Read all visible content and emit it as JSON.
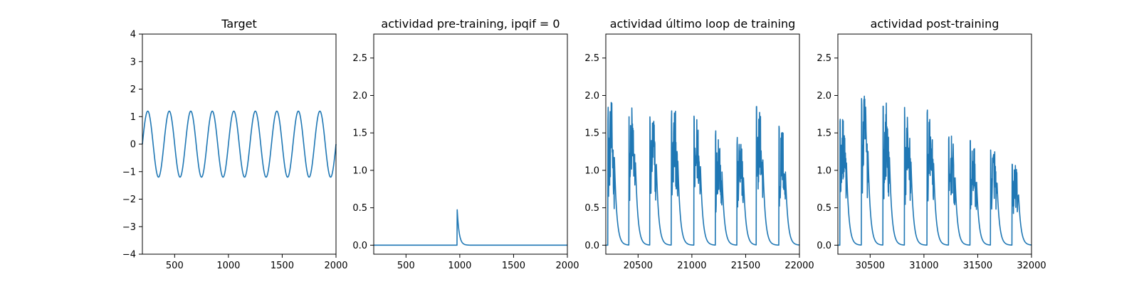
{
  "accent_color": "#1f77b4",
  "chart_data": [
    {
      "type": "line",
      "title": "Target",
      "xlabel": "",
      "ylabel": "",
      "xlim": [
        200,
        2000
      ],
      "ylim": [
        -4,
        4
      ],
      "xticks": [
        500,
        1000,
        1500,
        2000
      ],
      "yticks": [
        -4,
        -3,
        -2,
        -1,
        0,
        1,
        2,
        3,
        4
      ],
      "grid": false,
      "series": [
        {
          "shape": "sinusoid",
          "amplitude": 1.2,
          "period": 200,
          "peaks_at_x": [
            250,
            450,
            650,
            850,
            1050,
            1250,
            1450,
            1650,
            1850
          ],
          "troughs_at_x": [
            350,
            550,
            750,
            950,
            1150,
            1350,
            1550,
            1750,
            1950
          ],
          "value_at_x_2000": 0.4
        }
      ]
    },
    {
      "type": "line",
      "title": "actividad pre-training, ipqif = 0",
      "xlabel": "",
      "ylabel": "",
      "xlim": [
        200,
        2000
      ],
      "ylim": [
        -0.12,
        2.82
      ],
      "xticks": [
        500,
        1000,
        1500,
        2000
      ],
      "yticks": [
        0.0,
        0.5,
        1.0,
        1.5,
        2.0,
        2.5
      ],
      "grid": false,
      "series": [
        {
          "shape": "single_spike_with_decay",
          "baseline": 0.0,
          "spike_x": 975,
          "spike_value": 0.5,
          "decay_time": 18
        }
      ]
    },
    {
      "type": "line",
      "title": "actividad último loop de training",
      "xlabel": "",
      "ylabel": "",
      "xlim": [
        20200,
        22000
      ],
      "ylim": [
        -0.12,
        2.82
      ],
      "xticks": [
        20500,
        21000,
        21500,
        22000
      ],
      "yticks": [
        0.0,
        0.5,
        1.0,
        1.5,
        2.0,
        2.5
      ],
      "grid": false,
      "series": [
        {
          "shape": "noisy_bursts_with_decay",
          "baseline": 0.0,
          "decay_time": 22,
          "bursts": [
            {
              "start": 20220,
              "peak": 1.95
            },
            {
              "start": 20415,
              "peak": 1.92
            },
            {
              "start": 20610,
              "peak": 1.8
            },
            {
              "start": 20810,
              "peak": 1.87
            },
            {
              "start": 21020,
              "peak": 1.75
            },
            {
              "start": 21220,
              "peak": 1.63
            },
            {
              "start": 21420,
              "peak": 1.5
            },
            {
              "start": 21600,
              "peak": 1.9
            },
            {
              "start": 21810,
              "peak": 1.63
            }
          ]
        }
      ]
    },
    {
      "type": "line",
      "title": "actividad post-training",
      "xlabel": "",
      "ylabel": "",
      "xlim": [
        30200,
        32000
      ],
      "ylim": [
        -0.12,
        2.82
      ],
      "xticks": [
        30500,
        31000,
        31500,
        32000
      ],
      "yticks": [
        0.0,
        0.5,
        1.0,
        1.5,
        2.0,
        2.5
      ],
      "grid": false,
      "series": [
        {
          "shape": "noisy_bursts_with_decay",
          "baseline": 0.0,
          "decay_time": 22,
          "bursts": [
            {
              "start": 30220,
              "peak": 1.83
            },
            {
              "start": 30420,
              "peak": 2.09
            },
            {
              "start": 30620,
              "peak": 1.95
            },
            {
              "start": 30820,
              "peak": 1.85
            },
            {
              "start": 31030,
              "peak": 1.82
            },
            {
              "start": 31230,
              "peak": 1.5
            },
            {
              "start": 31430,
              "peak": 1.4
            },
            {
              "start": 31620,
              "peak": 1.38
            },
            {
              "start": 31820,
              "peak": 1.12
            }
          ]
        }
      ]
    }
  ]
}
